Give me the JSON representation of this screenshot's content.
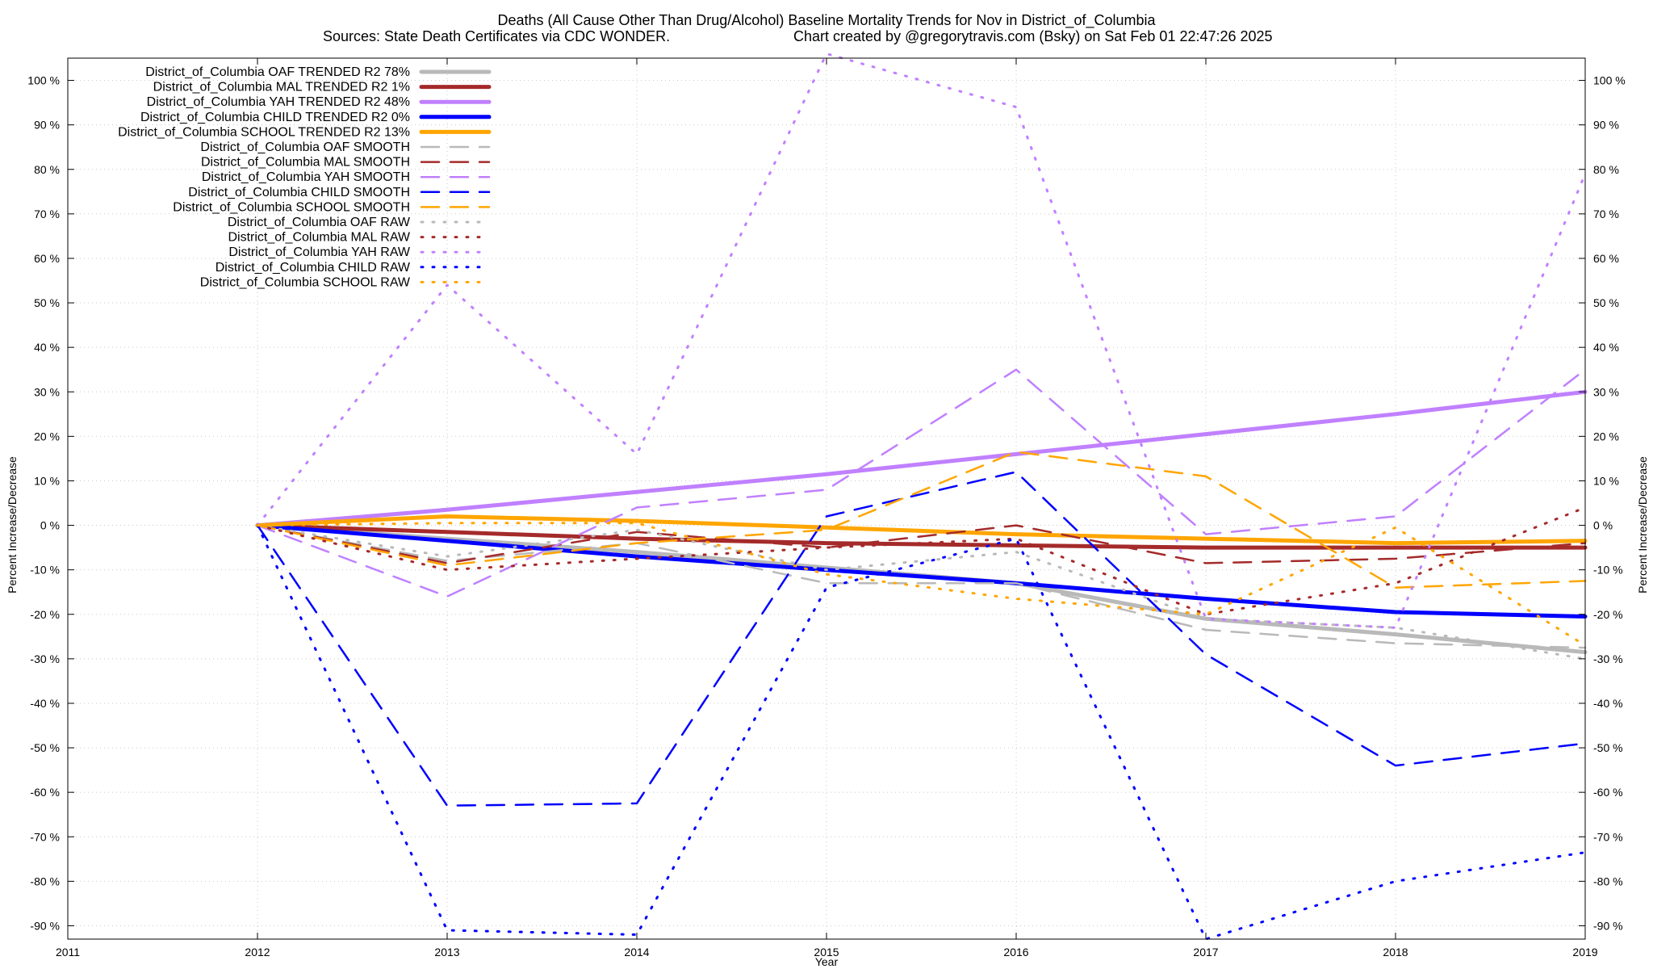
{
  "chart_data": {
    "type": "line",
    "title_line1": "Deaths (All Cause Other Than Drug/Alcohol)  Baseline Mortality Trends for Nov in District_of_Columbia",
    "title_line2_left": "Sources: State Death Certificates via CDC WONDER.",
    "title_line2_right": "Chart created by @gregorytravis.com (Bsky) on Sat Feb 01 22:47:26 2025",
    "xlabel": "Year",
    "ylabel_left": "Percent Increase/Decrease",
    "ylabel_right": "Percent Increase/Decrease",
    "xlim": [
      2011,
      2019
    ],
    "ylim": [
      -93,
      105
    ],
    "x_ticks": [
      2011,
      2012,
      2013,
      2014,
      2015,
      2016,
      2017,
      2018,
      2019
    ],
    "y_ticks": [
      100,
      90,
      80,
      70,
      60,
      50,
      40,
      30,
      20,
      10,
      0,
      -10,
      -20,
      -30,
      -40,
      -50,
      -60,
      -70,
      -80,
      -90
    ],
    "y_tick_suffix": " %",
    "grid": true,
    "legend_position": "top-left",
    "series": [
      {
        "name": "District_of_Columbia OAF TRENDED R2  78%",
        "style": "solid",
        "color": "#b9b9b9",
        "x": [
          2012,
          2013,
          2014,
          2015,
          2016,
          2017,
          2018,
          2019
        ],
        "y": [
          0,
          -3,
          -6,
          -9.5,
          -13,
          -21,
          -24.5,
          -28.5
        ]
      },
      {
        "name": "District_of_Columbia MAL TRENDED R2   1%",
        "style": "solid",
        "color": "#a52a2a",
        "x": [
          2012,
          2013,
          2014,
          2015,
          2016,
          2017,
          2018,
          2019
        ],
        "y": [
          0,
          -1.5,
          -3,
          -4,
          -4.5,
          -5,
          -5,
          -5
        ]
      },
      {
        "name": "District_of_Columbia YAH TRENDED R2  48%",
        "style": "solid",
        "color": "#c080ff",
        "x": [
          2012,
          2013,
          2014,
          2015,
          2016,
          2017,
          2018,
          2019
        ],
        "y": [
          0,
          3.5,
          7.5,
          11.5,
          16,
          20.5,
          25,
          30
        ]
      },
      {
        "name": "District_of_Columbia CHILD TRENDED R2   0%",
        "style": "solid",
        "color": "#0000ff",
        "x": [
          2012,
          2013,
          2014,
          2015,
          2016,
          2017,
          2018,
          2019
        ],
        "y": [
          0,
          -3.5,
          -7,
          -10,
          -13,
          -16.5,
          -19.5,
          -20.5
        ]
      },
      {
        "name": "District_of_Columbia SCHOOL TRENDED R2  13%",
        "style": "solid",
        "color": "#ffa500",
        "x": [
          2012,
          2013,
          2014,
          2015,
          2016,
          2017,
          2018,
          2019
        ],
        "y": [
          0,
          2,
          1,
          -0.5,
          -2,
          -3,
          -4,
          -3.5
        ]
      },
      {
        "name": "District_of_Columbia OAF SMOOTH",
        "style": "dashed",
        "color": "#b9b9b9",
        "x": [
          2012,
          2013,
          2014,
          2015,
          2016,
          2017,
          2018,
          2019
        ],
        "y": [
          0,
          -8,
          -4,
          -13,
          -13,
          -23.5,
          -26.5,
          -27.5
        ]
      },
      {
        "name": "District_of_Columbia MAL SMOOTH",
        "style": "dashed",
        "color": "#a52a2a",
        "x": [
          2012,
          2013,
          2014,
          2015,
          2016,
          2017,
          2018,
          2019
        ],
        "y": [
          0,
          -8.5,
          -1.5,
          -5,
          0,
          -8.5,
          -7.5,
          -4
        ]
      },
      {
        "name": "District_of_Columbia YAH SMOOTH",
        "style": "dashed",
        "color": "#c080ff",
        "x": [
          2012,
          2013,
          2014,
          2015,
          2016,
          2017,
          2018,
          2019
        ],
        "y": [
          0,
          -16,
          4,
          8,
          35,
          -2,
          2,
          35
        ]
      },
      {
        "name": "District_of_Columbia CHILD SMOOTH",
        "style": "dashed",
        "color": "#0000ff",
        "x": [
          2012,
          2013,
          2014,
          2015,
          2016,
          2017,
          2018,
          2019
        ],
        "y": [
          0,
          -63,
          -62.5,
          2,
          12,
          -29,
          -54,
          -49
        ]
      },
      {
        "name": "District_of_Columbia SCHOOL SMOOTH",
        "style": "dashed",
        "color": "#ffa500",
        "x": [
          2012,
          2013,
          2014,
          2015,
          2016,
          2017,
          2018,
          2019
        ],
        "y": [
          0,
          -9,
          -4,
          -1,
          16.5,
          11,
          -14,
          -12.5
        ]
      },
      {
        "name": "District_of_Columbia OAF RAW",
        "style": "dotted",
        "color": "#b9b9b9",
        "x": [
          2012,
          2013,
          2014,
          2015,
          2016,
          2017,
          2018,
          2019
        ],
        "y": [
          0,
          -7,
          -1,
          -10,
          -6,
          -21,
          -23,
          -30
        ]
      },
      {
        "name": "District_of_Columbia MAL RAW",
        "style": "dotted",
        "color": "#a52a2a",
        "x": [
          2012,
          2013,
          2014,
          2015,
          2016,
          2017,
          2018,
          2019
        ],
        "y": [
          0,
          -10,
          -7.5,
          -5,
          -3,
          -20,
          -13,
          4
        ]
      },
      {
        "name": "District_of_Columbia YAH RAW",
        "style": "dotted",
        "color": "#c080ff",
        "x": [
          2012,
          2013,
          2014,
          2015,
          2016,
          2017,
          2018,
          2019
        ],
        "y": [
          0,
          54,
          16,
          106,
          94,
          -21,
          -23,
          79
        ]
      },
      {
        "name": "District_of_Columbia CHILD RAW",
        "style": "dotted",
        "color": "#0000ff",
        "x": [
          2012,
          2013,
          2014,
          2015,
          2016,
          2017,
          2018,
          2019
        ],
        "y": [
          0,
          -91,
          -92,
          -14,
          -3,
          -93,
          -80,
          -73.5
        ]
      },
      {
        "name": "District_of_Columbia SCHOOL RAW",
        "style": "dotted",
        "color": "#ffa500",
        "x": [
          2012,
          2013,
          2014,
          2015,
          2016,
          2017,
          2018,
          2019
        ],
        "y": [
          0,
          0.5,
          0.5,
          -11,
          -16.5,
          -20,
          -0.5,
          -27
        ]
      }
    ]
  }
}
